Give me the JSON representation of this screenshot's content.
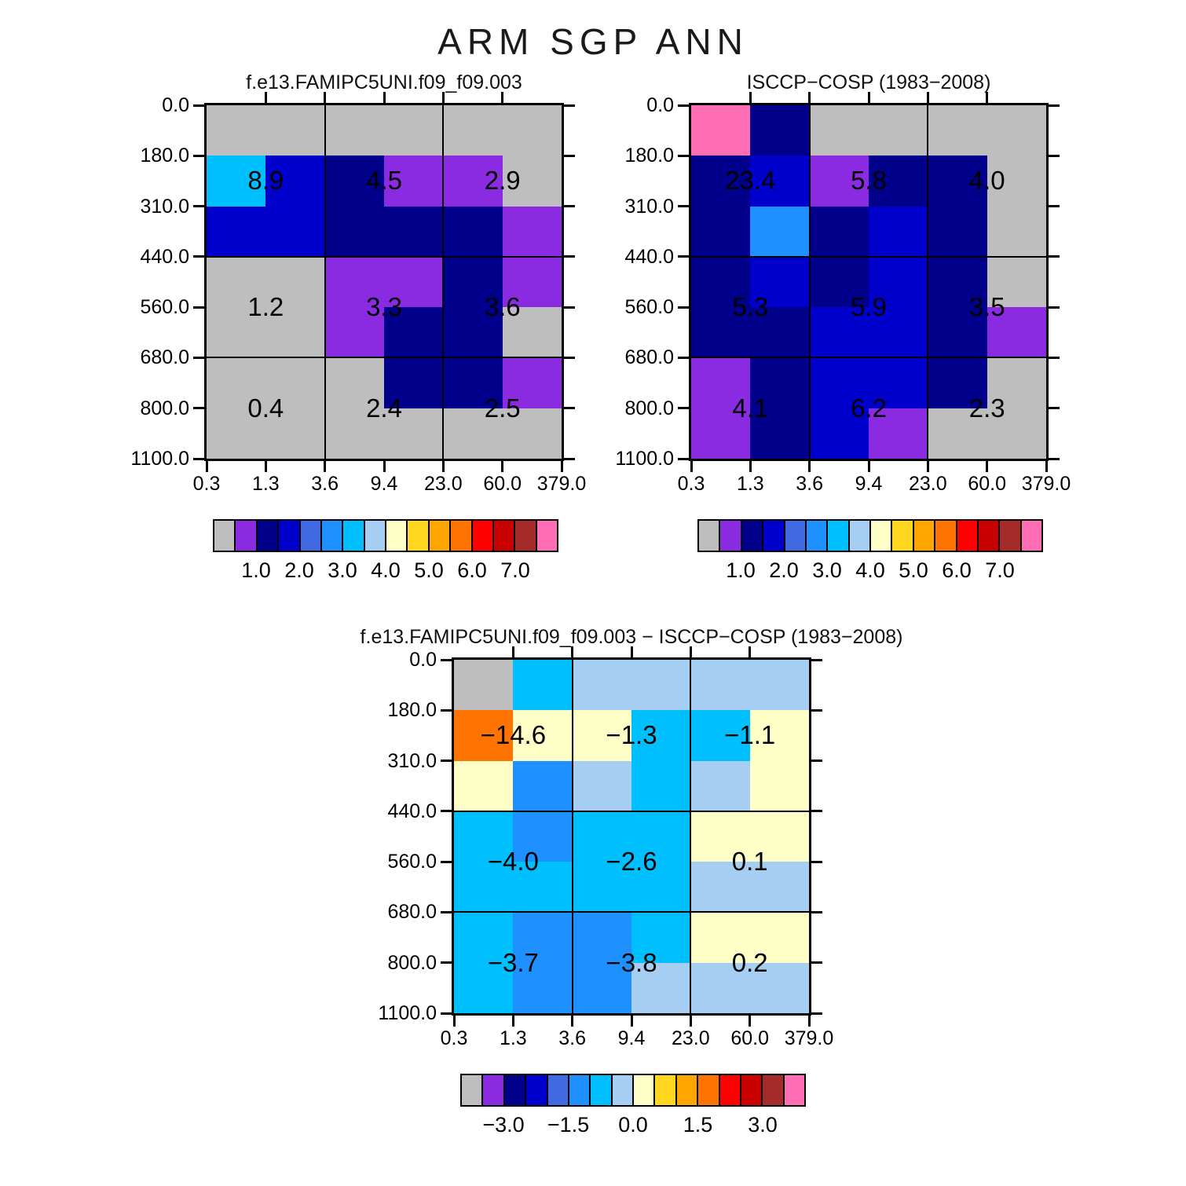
{
  "title": "ARM SGP ANN",
  "palette": {
    "gray": "#BEBEBE",
    "purple": "#8A2BE2",
    "navy": "#00008B",
    "blue": "#0000CD",
    "royal": "#4169E1",
    "dodger": "#1E90FF",
    "sky": "#00BFFF",
    "lightblue": "#A6CDF2",
    "cream": "#FFFFC8",
    "gold": "#FFD720",
    "orange": "#FFA500",
    "darkorange": "#FF7300",
    "red": "#FF0000",
    "darkred": "#C80000",
    "brown": "#A52A2A",
    "pink": "#FF6EB4"
  },
  "colorbar_colors": [
    "gray",
    "purple",
    "navy",
    "blue",
    "royal",
    "dodger",
    "sky",
    "lightblue",
    "cream",
    "gold",
    "orange",
    "darkorange",
    "red",
    "darkred",
    "brown",
    "pink"
  ],
  "chart_data": [
    {
      "type": "heatmap",
      "title": "f.e13.FAMIPC5UNI.f09_f09.003",
      "x_tick_labels": [
        "0.3",
        "1.3",
        "3.6",
        "9.4",
        "23.0",
        "60.0",
        "379.0"
      ],
      "y_tick_labels": [
        "0.0",
        "180.0",
        "310.0",
        "440.0",
        "560.0",
        "680.0",
        "800.0",
        "1100.0"
      ],
      "cell_colors": [
        [
          "gray",
          "gray",
          "gray",
          "gray",
          "gray",
          "gray"
        ],
        [
          "sky",
          "blue",
          "navy",
          "purple",
          "purple",
          "gray"
        ],
        [
          "blue",
          "blue",
          "navy",
          "navy",
          "navy",
          "purple"
        ],
        [
          "gray",
          "gray",
          "purple",
          "purple",
          "navy",
          "purple"
        ],
        [
          "gray",
          "gray",
          "purple",
          "navy",
          "navy",
          "gray"
        ],
        [
          "gray",
          "gray",
          "gray",
          "navy",
          "navy",
          "purple"
        ],
        [
          "gray",
          "gray",
          "gray",
          "gray",
          "gray",
          "gray"
        ]
      ],
      "block_values": [
        [
          8.9,
          4.5,
          2.9
        ],
        [
          1.2,
          3.3,
          3.6
        ],
        [
          0.4,
          2.4,
          2.5
        ]
      ],
      "colorbar": {
        "labels": [
          "1.0",
          "2.0",
          "3.0",
          "4.0",
          "5.0",
          "6.0",
          "7.0"
        ],
        "label_positions": [
          2,
          4,
          6,
          8,
          10,
          12,
          14
        ],
        "tick_values": [
          1.0,
          2.0,
          3.0,
          4.0,
          5.0,
          6.0,
          7.0
        ],
        "box_step": 0.5
      }
    },
    {
      "type": "heatmap",
      "title": "ISCCP−COSP (1983−2008)",
      "x_tick_labels": [
        "0.3",
        "1.3",
        "3.6",
        "9.4",
        "23.0",
        "60.0",
        "379.0"
      ],
      "y_tick_labels": [
        "0.0",
        "180.0",
        "310.0",
        "440.0",
        "560.0",
        "680.0",
        "800.0",
        "1100.0"
      ],
      "cell_colors": [
        [
          "pink",
          "navy",
          "gray",
          "gray",
          "gray",
          "gray"
        ],
        [
          "navy",
          "blue",
          "purple",
          "navy",
          "navy",
          "gray"
        ],
        [
          "navy",
          "dodger",
          "navy",
          "blue",
          "navy",
          "gray"
        ],
        [
          "navy",
          "blue",
          "navy",
          "blue",
          "navy",
          "gray"
        ],
        [
          "navy",
          "navy",
          "blue",
          "blue",
          "navy",
          "purple"
        ],
        [
          "purple",
          "navy",
          "blue",
          "blue",
          "navy",
          "gray"
        ],
        [
          "purple",
          "navy",
          "blue",
          "purple",
          "gray",
          "gray"
        ]
      ],
      "block_values": [
        [
          23.4,
          5.8,
          4.0
        ],
        [
          5.3,
          5.9,
          3.5
        ],
        [
          4.1,
          6.2,
          2.3
        ]
      ],
      "colorbar": {
        "labels": [
          "1.0",
          "2.0",
          "3.0",
          "4.0",
          "5.0",
          "6.0",
          "7.0"
        ],
        "label_positions": [
          2,
          4,
          6,
          8,
          10,
          12,
          14
        ],
        "tick_values": [
          1.0,
          2.0,
          3.0,
          4.0,
          5.0,
          6.0,
          7.0
        ],
        "box_step": 0.5
      }
    },
    {
      "type": "heatmap",
      "title": "f.e13.FAMIPC5UNI.f09_f09.003 − ISCCP−COSP (1983−2008)",
      "x_tick_labels": [
        "0.3",
        "1.3",
        "3.6",
        "9.4",
        "23.0",
        "60.0",
        "379.0"
      ],
      "y_tick_labels": [
        "0.0",
        "180.0",
        "310.0",
        "440.0",
        "560.0",
        "680.0",
        "800.0",
        "1100.0"
      ],
      "cell_colors": [
        [
          "gray",
          "sky",
          "lightblue",
          "lightblue",
          "lightblue",
          "lightblue"
        ],
        [
          "darkorange",
          "cream",
          "cream",
          "sky",
          "sky",
          "cream"
        ],
        [
          "cream",
          "dodger",
          "lightblue",
          "sky",
          "lightblue",
          "cream"
        ],
        [
          "sky",
          "dodger",
          "sky",
          "sky",
          "cream",
          "cream"
        ],
        [
          "sky",
          "sky",
          "sky",
          "sky",
          "lightblue",
          "lightblue"
        ],
        [
          "sky",
          "dodger",
          "dodger",
          "sky",
          "cream",
          "cream"
        ],
        [
          "sky",
          "dodger",
          "dodger",
          "lightblue",
          "lightblue",
          "lightblue"
        ]
      ],
      "block_values": [
        [
          -14.6,
          -1.3,
          -1.1
        ],
        [
          -4.0,
          -2.6,
          0.1
        ],
        [
          -3.7,
          -3.8,
          0.2
        ]
      ],
      "colorbar": {
        "labels": [
          "−3.0",
          "−1.5",
          "0.0",
          "1.5",
          "3.0"
        ],
        "label_positions": [
          2,
          5,
          8,
          11,
          14
        ],
        "tick_values": [
          -3.0,
          -1.5,
          0.0,
          1.5,
          3.0
        ],
        "box_step": 0.5
      }
    }
  ]
}
